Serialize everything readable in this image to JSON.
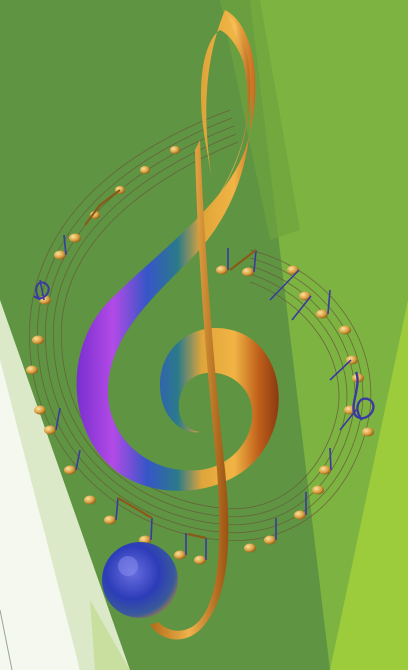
{
  "scene": {
    "subject": "treble-clef-with-music-notes",
    "colors": {
      "background_dark_green": "#5e9442",
      "background_mid_green": "#7cb341",
      "background_light_green": "#9ccc3c",
      "background_pale_green": "#dce9c8",
      "clef_gold": "#e0a030",
      "clef_purple": "#a040e0",
      "clef_blue": "#3050c0",
      "clef_orange": "#d46a10",
      "staff_lines": "#6b5a3a",
      "note_gold": "#d9a040"
    }
  }
}
